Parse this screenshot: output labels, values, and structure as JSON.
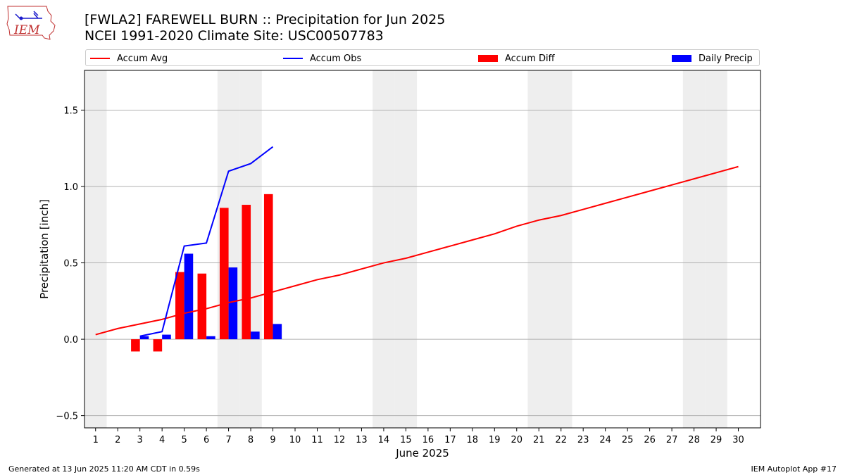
{
  "header": {
    "title_line1": "[FWLA2] FAREWELL BURN :: Precipitation for Jun 2025",
    "title_line2": "NCEI 1991-2020 Climate Site: USC00507783",
    "logo_text": "IEM"
  },
  "footer": {
    "left": "Generated at 13 Jun 2025 11:20 AM CDT in 0.59s",
    "right": "IEM Autoplot App #17"
  },
  "colors": {
    "accum_avg": "#ff0000",
    "accum_obs": "#0000ff",
    "accum_diff": "#ff0000",
    "daily_precip": "#0000ff",
    "weekend_shade": "#eeeeee",
    "grid": "#b0b0b0"
  },
  "chart_data": {
    "type": "bar",
    "xlabel": "June 2025",
    "ylabel": "Precipitation [inch]",
    "xlim": [
      0.5,
      31.0
    ],
    "ylim": [
      -0.58,
      1.76
    ],
    "x_ticks": [
      1,
      2,
      3,
      4,
      5,
      6,
      7,
      8,
      9,
      10,
      11,
      12,
      13,
      14,
      15,
      16,
      17,
      18,
      19,
      20,
      21,
      22,
      23,
      24,
      25,
      26,
      27,
      28,
      29,
      30
    ],
    "y_ticks": [
      -0.5,
      0.0,
      0.5,
      1.0,
      1.5
    ],
    "y_tick_labels": [
      "−0.5",
      "0.0",
      "0.5",
      "1.0",
      "1.5"
    ],
    "grid": "horizontal",
    "legend_position": "top",
    "weekend_shaded_days": [
      1,
      7,
      8,
      14,
      15,
      21,
      22,
      28,
      29
    ],
    "legend": [
      "Accum Avg",
      "Accum Obs",
      "Accum Diff",
      "Daily Precip"
    ],
    "series": [
      {
        "name": "Accum Avg",
        "type": "line",
        "x": [
          1,
          2,
          3,
          4,
          5,
          6,
          7,
          8,
          9,
          10,
          11,
          12,
          13,
          14,
          15,
          16,
          17,
          18,
          19,
          20,
          21,
          22,
          23,
          24,
          25,
          26,
          27,
          28,
          29,
          30
        ],
        "values": [
          0.03,
          0.07,
          0.1,
          0.13,
          0.17,
          0.2,
          0.24,
          0.27,
          0.31,
          0.35,
          0.39,
          0.42,
          0.46,
          0.5,
          0.53,
          0.57,
          0.61,
          0.65,
          0.69,
          0.74,
          0.78,
          0.81,
          0.85,
          0.89,
          0.93,
          0.97,
          1.01,
          1.05,
          1.09,
          1.13
        ]
      },
      {
        "name": "Accum Obs",
        "type": "line",
        "x": [
          3,
          4,
          5,
          6,
          7,
          8,
          9
        ],
        "values": [
          0.02,
          0.05,
          0.61,
          0.63,
          1.1,
          1.15,
          1.26
        ]
      },
      {
        "name": "Accum Diff",
        "type": "bar",
        "x": [
          3,
          4,
          5,
          6,
          7,
          8,
          9
        ],
        "values": [
          -0.08,
          -0.08,
          0.44,
          0.43,
          0.86,
          0.88,
          0.95
        ]
      },
      {
        "name": "Daily Precip",
        "type": "bar",
        "x": [
          3,
          4,
          5,
          6,
          7,
          8,
          9
        ],
        "values": [
          0.02,
          0.03,
          0.56,
          0.02,
          0.47,
          0.05,
          0.1
        ]
      }
    ]
  }
}
